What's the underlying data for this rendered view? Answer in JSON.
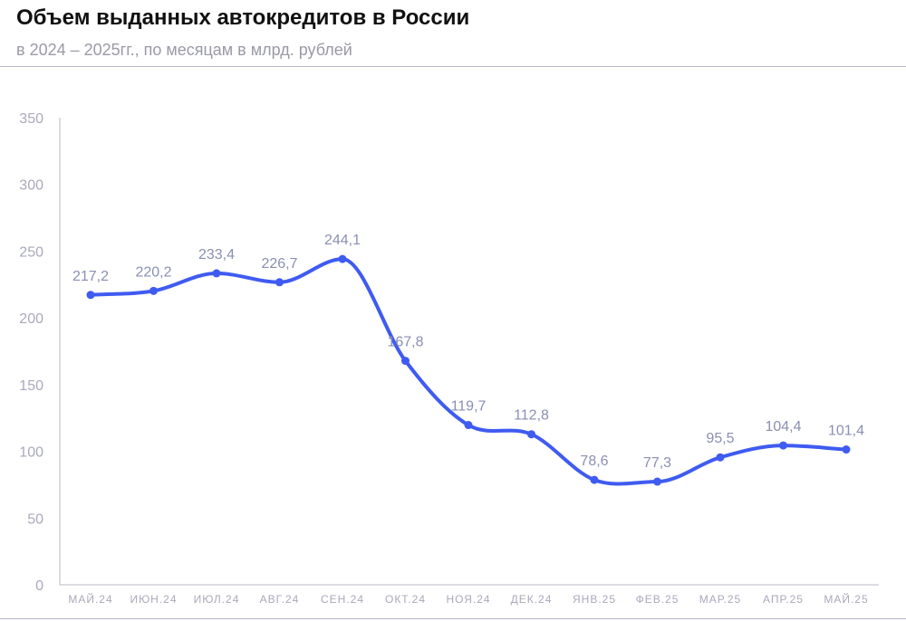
{
  "header": {
    "title": "Объем выданных автокредитов в России",
    "subtitle": "в 2024 – 2025гг., по месяцам в млрд. рублей"
  },
  "colors": {
    "line": "#3f5bf0",
    "axis": "#b7b7c8",
    "tick_text": "#a9a9bd",
    "data_label": "#8a8fb3"
  },
  "chart_data": {
    "type": "line",
    "title": "Объем выданных автокредитов в России",
    "subtitle": "в 2024 – 2025гг., по месяцам в млрд. рублей",
    "categories": [
      "МАЙ.24",
      "ИЮН.24",
      "ИЮЛ.24",
      "АВГ.24",
      "СЕН.24",
      "ОКТ.24",
      "НОЯ.24",
      "ДЕК.24",
      "ЯНВ.25",
      "ФЕВ.25",
      "МАР.25",
      "АПР.25",
      "МАЙ.25"
    ],
    "values": [
      217.2,
      220.2,
      233.4,
      226.7,
      244.1,
      167.8,
      119.7,
      112.8,
      78.6,
      77.3,
      95.5,
      104.4,
      101.4
    ],
    "value_labels": [
      "217,2",
      "220,2",
      "233,4",
      "226,7",
      "244,1",
      "167,8",
      "119,7",
      "112,8",
      "78,6",
      "77,3",
      "95,5",
      "104,4",
      "101,4"
    ],
    "yticks": [
      0,
      50,
      100,
      150,
      200,
      250,
      300,
      350
    ],
    "ylim": [
      0,
      350
    ],
    "xlabel": "",
    "ylabel": "",
    "grid": false,
    "legend": "none",
    "smooth": true,
    "markers": true
  }
}
